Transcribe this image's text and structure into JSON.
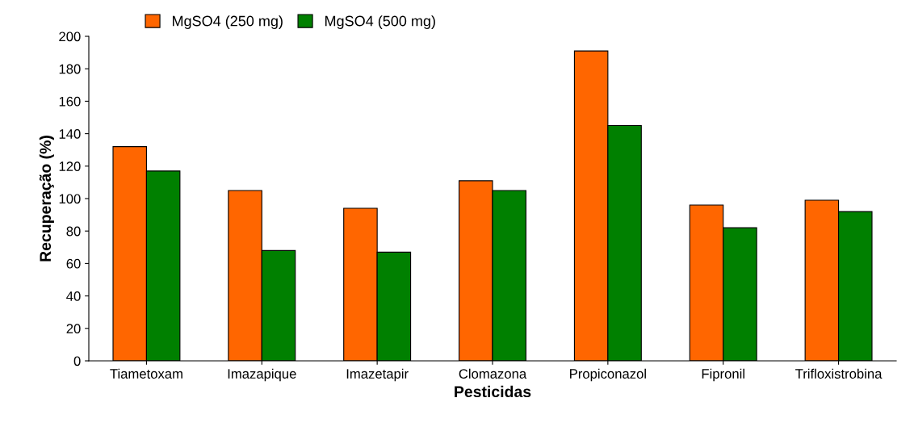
{
  "chart_data": {
    "type": "bar",
    "xlabel": "Pesticidas",
    "ylabel": "Recuperação (%)",
    "categories": [
      "Tiametoxam",
      "Imazapique",
      "Imazetapir",
      "Clomazona",
      "Propiconazol",
      "Fipronil",
      "Trifloxistrobina"
    ],
    "series": [
      {
        "name": "MgSO4 (250 mg)",
        "color": "#ff6600",
        "values": [
          132,
          105,
          94,
          111,
          191,
          96,
          99
        ]
      },
      {
        "name": "MgSO4 (500 mg)",
        "color": "#008000",
        "values": [
          117,
          68,
          67,
          105,
          145,
          82,
          92
        ]
      }
    ],
    "ylim": [
      0,
      200
    ],
    "yticks": [
      0,
      20,
      40,
      60,
      80,
      100,
      120,
      140,
      160,
      180,
      200
    ],
    "grid": false,
    "legend": "top"
  }
}
